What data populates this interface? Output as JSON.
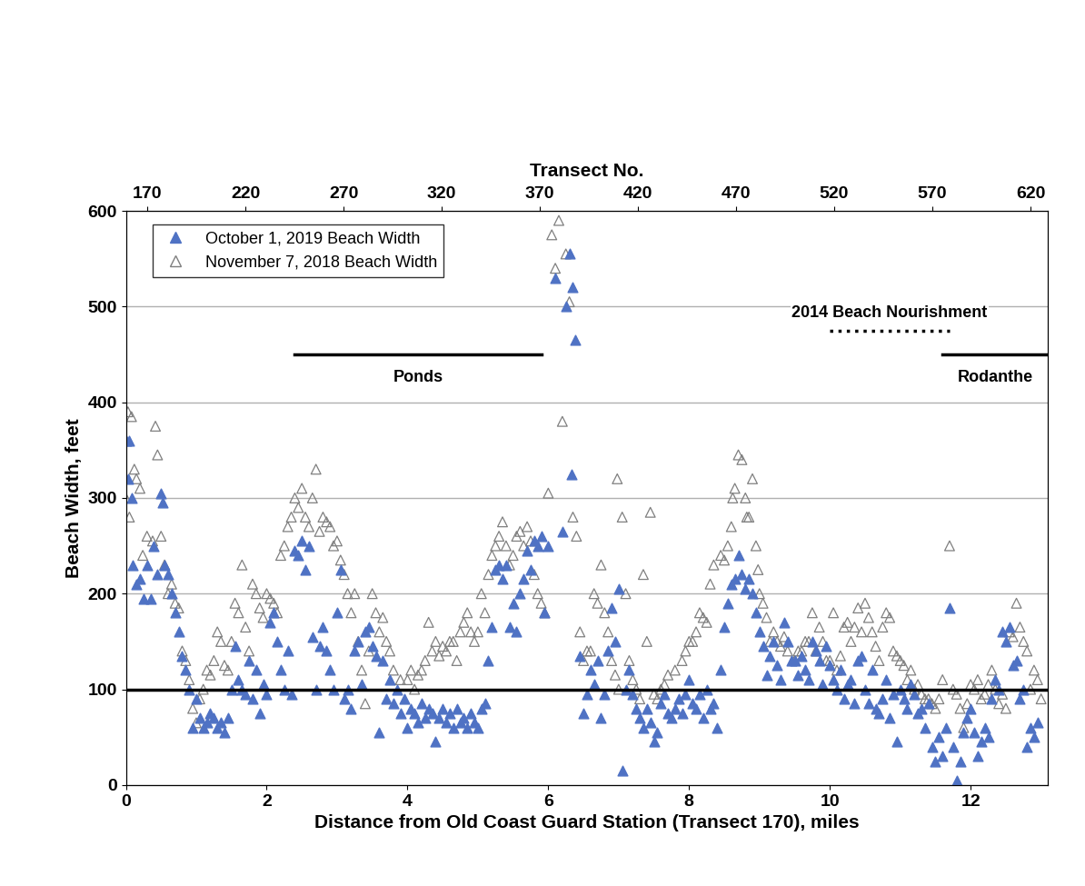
{
  "chart_data": {
    "type": "scatter",
    "x_label": "Distance from Old Coast Guard Station (Transect 170), miles",
    "x2_label": "Transect No.",
    "y_label": "Beach Width, feet",
    "xlim": [
      0,
      13.1
    ],
    "xticks": [
      0,
      2,
      4,
      6,
      8,
      10,
      12
    ],
    "x2lim": [
      159,
      629
    ],
    "x2ticks": [
      170,
      220,
      270,
      320,
      370,
      420,
      470,
      520,
      570,
      620
    ],
    "ylim": [
      0,
      600
    ],
    "yticks": [
      0,
      100,
      200,
      300,
      400,
      500,
      600
    ],
    "grid": true,
    "legend": "upper left",
    "hlines": [
      100
    ],
    "segments": [
      {
        "label": "Ponds",
        "x": [
          2.4,
          5.9
        ],
        "y": 450,
        "line_style": "solid"
      },
      {
        "label": "2014 Beach Nourishment",
        "x": [
          10.0,
          11.7
        ],
        "y": 475,
        "line_style": "dotted"
      },
      {
        "label": "Rodanthe",
        "x": [
          11.6,
          13.1
        ],
        "y": 450,
        "line_style": "solid"
      }
    ],
    "series": [
      {
        "name": "October 1, 2019 Beach Width",
        "color": "#4f72c4",
        "marker": "triangle",
        "x": [
          0.0,
          0.03,
          0.05,
          0.08,
          0.1,
          0.15,
          0.2,
          0.25,
          0.3,
          0.35,
          0.4,
          0.45,
          0.5,
          0.52,
          0.55,
          0.6,
          0.65,
          0.7,
          0.75,
          0.8,
          0.85,
          0.9,
          0.95,
          1.0,
          1.05,
          1.1,
          1.15,
          1.2,
          1.25,
          1.3,
          1.35,
          1.4,
          1.45,
          1.5,
          1.55,
          1.6,
          1.65,
          1.7,
          1.75,
          1.8,
          1.85,
          1.9,
          1.95,
          2.0,
          2.05,
          2.1,
          2.15,
          2.2,
          2.25,
          2.3,
          2.35,
          2.4,
          2.45,
          2.5,
          2.55,
          2.6,
          2.65,
          2.7,
          2.75,
          2.8,
          2.85,
          2.9,
          2.95,
          3.0,
          3.05,
          3.1,
          3.15,
          3.2,
          3.25,
          3.3,
          3.35,
          3.4,
          3.45,
          3.5,
          3.55,
          3.6,
          3.65,
          3.7,
          3.75,
          3.8,
          3.85,
          3.9,
          3.95,
          4.0,
          4.05,
          4.1,
          4.15,
          4.2,
          4.25,
          4.3,
          4.35,
          4.4,
          4.45,
          4.5,
          4.55,
          4.6,
          4.65,
          4.7,
          4.75,
          4.8,
          4.85,
          4.9,
          4.95,
          5.0,
          5.05,
          5.1,
          5.15,
          5.2,
          5.25,
          5.3,
          5.35,
          5.4,
          5.45,
          5.5,
          5.55,
          5.6,
          5.65,
          5.7,
          5.75,
          5.8,
          5.85,
          5.9,
          5.95,
          6.1,
          6.2,
          6.25,
          6.3,
          6.33,
          6.35,
          6.38,
          6.0,
          6.45,
          6.5,
          6.55,
          6.6,
          6.65,
          6.7,
          6.75,
          6.8,
          6.85,
          6.9,
          6.95,
          7.0,
          7.05,
          7.1,
          7.15,
          7.2,
          7.25,
          7.3,
          7.35,
          7.4,
          7.45,
          7.5,
          7.55,
          7.6,
          7.65,
          7.7,
          7.75,
          7.8,
          7.85,
          7.9,
          7.95,
          8.0,
          8.05,
          8.1,
          8.15,
          8.2,
          8.25,
          8.3,
          8.35,
          8.4,
          8.45,
          8.5,
          8.55,
          8.6,
          8.65,
          8.7,
          8.75,
          8.8,
          8.85,
          8.9,
          8.95,
          9.0,
          9.05,
          9.1,
          9.15,
          9.2,
          9.25,
          9.3,
          9.35,
          9.4,
          9.45,
          9.5,
          9.55,
          9.6,
          9.65,
          9.7,
          9.75,
          9.8,
          9.85,
          9.9,
          9.95,
          10.0,
          10.05,
          10.1,
          10.15,
          10.2,
          10.25,
          10.3,
          10.35,
          10.4,
          10.45,
          10.5,
          10.55,
          10.6,
          10.65,
          10.7,
          10.75,
          10.8,
          10.85,
          10.9,
          10.95,
          11.0,
          11.05,
          11.1,
          11.15,
          11.2,
          11.25,
          11.3,
          11.35,
          11.4,
          11.45,
          11.5,
          11.55,
          11.6,
          11.65,
          11.7,
          11.75,
          11.8,
          11.85,
          11.9,
          11.95,
          12.0,
          12.05,
          12.1,
          12.15,
          12.2,
          12.25,
          12.3,
          12.35,
          12.4,
          12.45,
          12.5,
          12.55,
          12.6,
          12.65,
          12.7,
          12.75,
          12.8,
          12.85,
          12.9,
          12.95
        ],
        "values": [
          360,
          320,
          360,
          300,
          230,
          210,
          215,
          195,
          230,
          195,
          250,
          220,
          305,
          295,
          230,
          220,
          200,
          180,
          160,
          135,
          120,
          100,
          60,
          90,
          70,
          60,
          65,
          75,
          70,
          60,
          65,
          55,
          70,
          100,
          145,
          110,
          100,
          95,
          130,
          90,
          120,
          75,
          105,
          95,
          170,
          180,
          150,
          120,
          100,
          140,
          95,
          245,
          240,
          255,
          225,
          250,
          155,
          100,
          145,
          165,
          140,
          120,
          100,
          180,
          225,
          90,
          100,
          80,
          140,
          150,
          105,
          160,
          165,
          145,
          135,
          55,
          130,
          90,
          110,
          85,
          100,
          75,
          90,
          60,
          80,
          75,
          65,
          85,
          70,
          80,
          75,
          45,
          70,
          80,
          65,
          75,
          60,
          80,
          65,
          70,
          60,
          75,
          65,
          60,
          80,
          85,
          130,
          165,
          225,
          230,
          215,
          230,
          165,
          190,
          160,
          200,
          215,
          245,
          225,
          255,
          250,
          260,
          180,
          530,
          265,
          500,
          555,
          325,
          520,
          465,
          250,
          135,
          75,
          95,
          120,
          105,
          130,
          70,
          95,
          140,
          185,
          150,
          205,
          15,
          100,
          120,
          95,
          80,
          70,
          60,
          80,
          65,
          45,
          55,
          85,
          95,
          75,
          70,
          80,
          90,
          75,
          95,
          110,
          85,
          80,
          95,
          70,
          100,
          80,
          85,
          60,
          120,
          165,
          190,
          210,
          215,
          240,
          220,
          205,
          215,
          200,
          180,
          160,
          145,
          115,
          135,
          150,
          125,
          110,
          170,
          150,
          130,
          130,
          115,
          135,
          120,
          110,
          150,
          140,
          130,
          105,
          145,
          125,
          110,
          100,
          120,
          90,
          105,
          110,
          85,
          130,
          135,
          100,
          85,
          120,
          80,
          75,
          90,
          110,
          70,
          95,
          45,
          100,
          90,
          80,
          105,
          95,
          75,
          80,
          60,
          85,
          40,
          25,
          50,
          30,
          60,
          185,
          40,
          5,
          25,
          55,
          70,
          80,
          55,
          30,
          45,
          60,
          50,
          90,
          110,
          100,
          160,
          150,
          165,
          125,
          130,
          90,
          100,
          40,
          60,
          50,
          65
        ]
      },
      {
        "name": "November 7, 2018 Beach Width",
        "color": "#7f7f7f",
        "marker": "triangle_open",
        "x": [
          0.0,
          0.03,
          0.05,
          0.08,
          0.12,
          0.15,
          0.2,
          0.24,
          0.3,
          0.38,
          0.42,
          0.45,
          0.5,
          0.55,
          0.6,
          0.65,
          0.7,
          0.75,
          0.8,
          0.85,
          0.9,
          0.95,
          1.0,
          1.05,
          1.1,
          1.15,
          1.2,
          1.25,
          1.3,
          1.35,
          1.4,
          1.45,
          1.5,
          1.55,
          1.6,
          1.65,
          1.7,
          1.75,
          1.8,
          1.85,
          1.9,
          1.95,
          2.0,
          2.05,
          2.1,
          2.15,
          2.2,
          2.25,
          2.3,
          2.35,
          2.4,
          2.45,
          2.5,
          2.55,
          2.6,
          2.65,
          2.7,
          2.75,
          2.8,
          2.85,
          2.9,
          2.95,
          3.0,
          3.05,
          3.1,
          3.15,
          3.2,
          3.25,
          3.3,
          3.35,
          3.4,
          3.45,
          3.5,
          3.55,
          3.6,
          3.65,
          3.7,
          3.75,
          3.8,
          3.9,
          4.0,
          4.05,
          4.1,
          4.15,
          4.2,
          4.25,
          4.3,
          4.35,
          4.4,
          4.45,
          4.5,
          4.55,
          4.6,
          4.65,
          4.7,
          4.75,
          4.8,
          4.85,
          4.9,
          4.95,
          5.0,
          5.05,
          5.1,
          5.15,
          5.2,
          5.25,
          5.3,
          5.35,
          5.4,
          5.45,
          5.5,
          5.55,
          5.6,
          5.65,
          5.7,
          5.75,
          5.8,
          5.85,
          5.9,
          5.95,
          6.0,
          6.05,
          6.1,
          6.15,
          6.2,
          6.25,
          6.3,
          6.35,
          6.4,
          6.45,
          6.5,
          6.55,
          6.6,
          6.65,
          6.7,
          6.75,
          6.8,
          6.85,
          6.9,
          6.95,
          7.0,
          6.98,
          7.05,
          7.1,
          7.15,
          7.2,
          7.25,
          7.3,
          7.35,
          7.4,
          7.45,
          7.5,
          7.55,
          7.6,
          7.65,
          7.7,
          7.8,
          7.9,
          7.95,
          8.0,
          8.05,
          8.1,
          8.15,
          8.2,
          8.25,
          8.3,
          8.35,
          8.45,
          8.5,
          8.55,
          8.6,
          8.62,
          8.65,
          8.7,
          8.75,
          8.8,
          8.82,
          8.85,
          8.9,
          8.95,
          8.98,
          9.0,
          9.05,
          9.1,
          9.15,
          9.2,
          9.25,
          9.3,
          9.35,
          9.4,
          9.5,
          9.55,
          9.6,
          9.65,
          9.7,
          9.75,
          9.8,
          9.85,
          9.9,
          9.95,
          10.0,
          10.05,
          10.1,
          10.15,
          10.2,
          10.25,
          10.3,
          10.35,
          10.4,
          10.45,
          10.5,
          10.55,
          10.6,
          10.65,
          10.7,
          10.75,
          10.8,
          10.85,
          10.9,
          10.95,
          11.0,
          11.05,
          11.1,
          11.15,
          11.2,
          11.25,
          11.3,
          11.35,
          11.4,
          11.45,
          11.5,
          11.55,
          11.6,
          11.7,
          11.75,
          11.8,
          11.85,
          11.9,
          11.95,
          12.0,
          12.05,
          12.1,
          12.15,
          12.2,
          12.25,
          12.3,
          12.35,
          12.4,
          12.45,
          12.5,
          12.55,
          12.6,
          12.65,
          12.7,
          12.75,
          12.8,
          12.85,
          12.9,
          12.95,
          13.0
        ],
        "values": [
          300,
          390,
          280,
          385,
          330,
          320,
          310,
          240,
          260,
          255,
          375,
          345,
          260,
          230,
          200,
          210,
          190,
          185,
          140,
          130,
          110,
          80,
          65,
          90,
          100,
          120,
          115,
          130,
          160,
          150,
          125,
          120,
          150,
          190,
          180,
          230,
          165,
          140,
          210,
          200,
          185,
          175,
          200,
          195,
          190,
          180,
          240,
          250,
          270,
          280,
          300,
          290,
          310,
          280,
          270,
          300,
          330,
          265,
          280,
          275,
          270,
          250,
          255,
          235,
          220,
          200,
          180,
          200,
          150,
          120,
          85,
          140,
          200,
          180,
          160,
          175,
          150,
          140,
          120,
          110,
          110,
          120,
          100,
          115,
          120,
          130,
          170,
          140,
          150,
          135,
          145,
          140,
          150,
          150,
          130,
          160,
          170,
          180,
          160,
          150,
          160,
          200,
          180,
          220,
          240,
          250,
          260,
          275,
          250,
          230,
          240,
          260,
          265,
          250,
          270,
          255,
          220,
          200,
          190,
          180,
          305,
          575,
          540,
          590,
          380,
          555,
          505,
          280,
          260,
          160,
          130,
          140,
          140,
          200,
          190,
          230,
          180,
          160,
          130,
          115,
          100,
          320,
          280,
          200,
          130,
          110,
          100,
          90,
          220,
          150,
          285,
          95,
          90,
          100,
          105,
          115,
          120,
          130,
          140,
          150,
          150,
          160,
          180,
          175,
          170,
          210,
          230,
          240,
          235,
          250,
          270,
          300,
          310,
          345,
          340,
          300,
          280,
          280,
          320,
          250,
          225,
          200,
          190,
          175,
          150,
          160,
          150,
          145,
          155,
          140,
          130,
          140,
          140,
          150,
          150,
          180,
          140,
          165,
          150,
          130,
          130,
          180,
          120,
          135,
          165,
          170,
          150,
          165,
          185,
          160,
          190,
          175,
          160,
          145,
          130,
          165,
          180,
          175,
          140,
          135,
          130,
          125,
          110,
          120,
          100,
          105,
          95,
          90,
          90,
          85,
          80,
          90,
          110,
          250,
          100,
          95,
          80,
          60,
          85,
          105,
          100,
          110,
          90,
          95,
          105,
          120,
          100,
          85,
          95,
          80,
          160,
          155,
          190,
          165,
          150,
          140,
          100,
          120,
          110,
          90
        ]
      }
    ]
  }
}
